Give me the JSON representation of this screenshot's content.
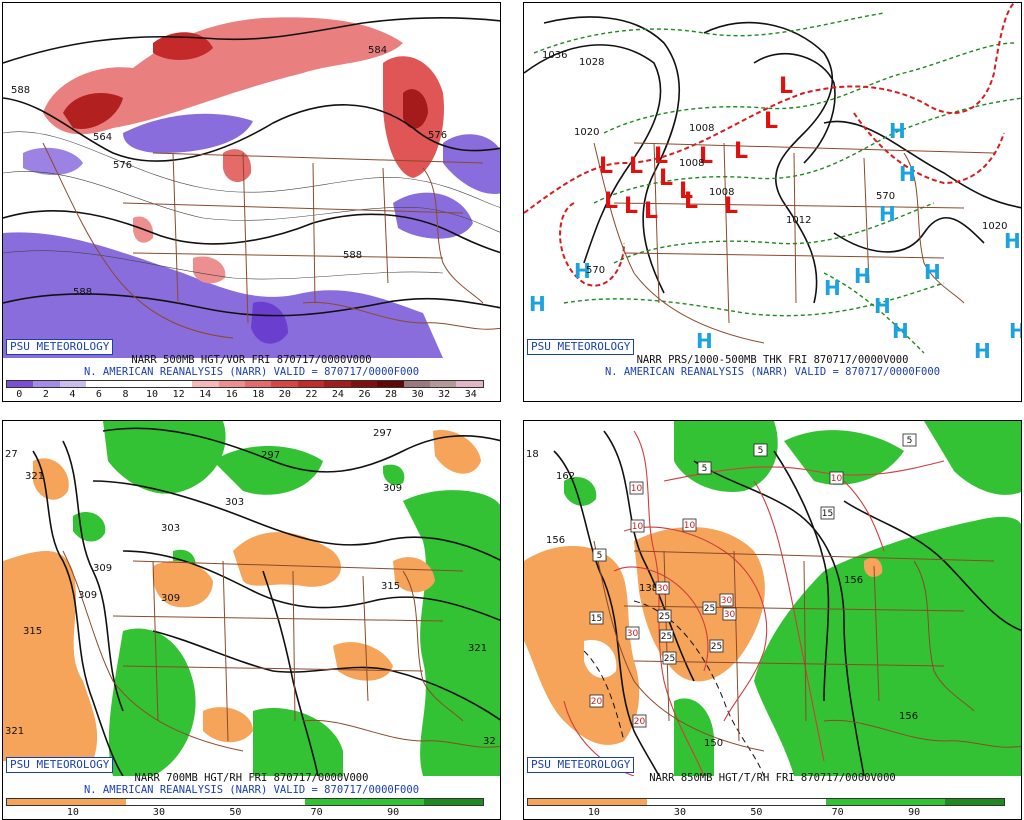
{
  "source_badge": "PSU METEOROLOGY",
  "panels": [
    {
      "id": "p1",
      "line1": "NARR 500MB HGT/VOR FRI 870717/0000V000",
      "line2": "N. AMERICAN REANALYSIS (NARR) VALID = 870717/0000F000",
      "colorbar_ticks": [
        "0",
        "2",
        "4",
        "6",
        "8",
        "10",
        "12",
        "14",
        "16",
        "18",
        "20",
        "22",
        "24",
        "26",
        "28",
        "30",
        "32",
        "34"
      ],
      "colorbar_colors": [
        "#7a4fd6",
        "#a48be6",
        "#c9bdf0",
        "#ffffff",
        "#ffffff",
        "#ffffff",
        "#ffffff",
        "#f6b8b8",
        "#ee8f8f",
        "#e56a6a",
        "#d94545",
        "#c42a2a",
        "#a51a1a",
        "#801010",
        "#600808",
        "#9a7a7a",
        "#b59999",
        "#e6b3c5"
      ],
      "contour_labels": [
        "588",
        "576",
        "564",
        "584",
        "576",
        "588",
        "588"
      ]
    },
    {
      "id": "p2",
      "line1": "NARR PRS/1000-500MB THK FRI 870717/0000V000",
      "line2": "N. AMERICAN REANALYSIS (NARR) VALID = 870717/0000F000",
      "contour_labels": [
        "1036",
        "1028",
        "1020",
        "1008",
        "1008",
        "1008",
        "1012",
        "1020",
        "570",
        "570"
      ],
      "low_marker": "L",
      "high_marker": "H"
    },
    {
      "id": "p3",
      "line1": "NARR 700MB HGT/RH FRI 870717/0000V000",
      "line2": "N. AMERICAN REANALYSIS (NARR) VALID = 870717/0000F000",
      "colorbar_ticks": [
        "10",
        "30",
        "50",
        "70",
        "90"
      ],
      "contour_labels": [
        "321",
        "297",
        "303",
        "303",
        "309",
        "309",
        "309",
        "309",
        "315",
        "315",
        "321",
        "321",
        "32",
        "27",
        "297"
      ]
    },
    {
      "id": "p4",
      "line1": "NARR 850MB HGT/T/RH FRI 870717/0000V000",
      "colorbar_ticks": [
        "10",
        "30",
        "50",
        "70",
        "90"
      ],
      "contour_labels": [
        "162",
        "156",
        "138",
        "150",
        "156",
        "156",
        "18"
      ],
      "temp_labels": [
        "5",
        "5",
        "5",
        "5",
        "10",
        "10",
        "10",
        "10",
        "15",
        "15",
        "20",
        "20",
        "25",
        "25",
        "25",
        "25",
        "25",
        "30",
        "30",
        "30",
        "30"
      ]
    }
  ]
}
